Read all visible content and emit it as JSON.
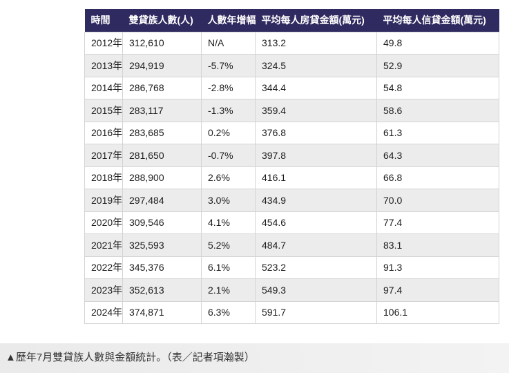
{
  "chart_data": {
    "type": "table",
    "title": "歷年7月雙貸族人數與金額統計",
    "columns": [
      "時間",
      "雙貸族人數(人)",
      "人數年增幅",
      "平均每人房貸金額(萬元)",
      "平均每人信貸金額(萬元)"
    ],
    "rows": [
      [
        "2012年",
        "312,610",
        "N/A",
        "313.2",
        "49.8"
      ],
      [
        "2013年",
        "294,919",
        "-5.7%",
        "324.5",
        "52.9"
      ],
      [
        "2014年",
        "286,768",
        "-2.8%",
        "344.4",
        "54.8"
      ],
      [
        "2015年",
        "283,117",
        "-1.3%",
        "359.4",
        "58.6"
      ],
      [
        "2016年",
        "283,685",
        "0.2%",
        "376.8",
        "61.3"
      ],
      [
        "2017年",
        "281,650",
        "-0.7%",
        "397.8",
        "64.3"
      ],
      [
        "2018年",
        "288,900",
        "2.6%",
        "416.1",
        "66.8"
      ],
      [
        "2019年",
        "297,484",
        "3.0%",
        "434.9",
        "70.0"
      ],
      [
        "2020年",
        "309,546",
        "4.1%",
        "454.6",
        "77.4"
      ],
      [
        "2021年",
        "325,593",
        "5.2%",
        "484.7",
        "83.1"
      ],
      [
        "2022年",
        "345,376",
        "6.1%",
        "523.2",
        "91.3"
      ],
      [
        "2023年",
        "352,613",
        "2.1%",
        "549.3",
        "97.4"
      ],
      [
        "2024年",
        "374,871",
        "6.3%",
        "591.7",
        "106.1"
      ]
    ]
  },
  "caption": {
    "text": "▲歷年7月雙貸族人數與金額統計。（表／記者項瀚製）"
  },
  "colors": {
    "header_bg": "#2f2a5f",
    "header_text": "#ffffff",
    "row_alt_bg": "#ececec",
    "border": "#d4d4d4",
    "caption_bg": "#eaeaea",
    "caption_text": "#333333"
  }
}
